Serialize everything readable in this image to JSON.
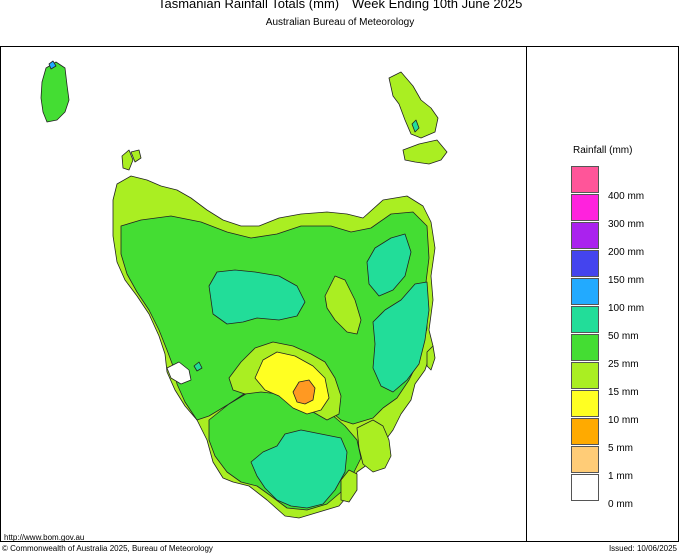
{
  "header": {
    "title": "Tasmanian Rainfall Totals (mm)",
    "period": "Week Ending 10th June 2025",
    "subtitle": "Australian Bureau of Meteorology"
  },
  "legend": {
    "title": "Rainfall (mm)",
    "items": [
      {
        "label": "400 mm",
        "color": "#ff5599"
      },
      {
        "label": "300 mm",
        "color": "#ff22dd"
      },
      {
        "label": "200 mm",
        "color": "#aa22ee"
      },
      {
        "label": "150 mm",
        "color": "#4444ee"
      },
      {
        "label": "100 mm",
        "color": "#22aaff"
      },
      {
        "label": "50 mm",
        "color": "#22dd99"
      },
      {
        "label": "25 mm",
        "color": "#44dd33"
      },
      {
        "label": "15 mm",
        "color": "#aaee22"
      },
      {
        "label": "10 mm",
        "color": "#ffff22"
      },
      {
        "label": "5 mm",
        "color": "#ffaa00"
      },
      {
        "label": "1 mm",
        "color": "#ffcc77"
      },
      {
        "label": "0 mm",
        "color": "#ffffff"
      }
    ]
  },
  "footer": {
    "url": "http://www.bom.gov.au",
    "copyright": "© Commonwealth of Australia 2025, Bureau of Meteorology",
    "issued": "Issued: 10/06/2025"
  }
}
